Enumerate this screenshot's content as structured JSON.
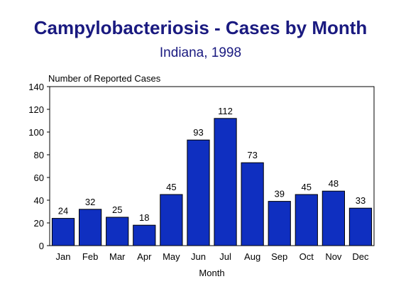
{
  "chart_data": {
    "type": "bar",
    "title": "Campylobacteriosis - Cases by Month",
    "subtitle": "Indiana, 1998",
    "ylabel": "Number of Reported Cases",
    "xlabel": "Month",
    "categories": [
      "Jan",
      "Feb",
      "Mar",
      "Apr",
      "May",
      "Jun",
      "Jul",
      "Aug",
      "Sep",
      "Oct",
      "Nov",
      "Dec"
    ],
    "values": [
      24,
      32,
      25,
      18,
      45,
      93,
      112,
      73,
      39,
      45,
      48,
      33
    ],
    "ylim": [
      0,
      140
    ],
    "yticks": [
      0,
      20,
      40,
      60,
      80,
      100,
      120,
      140
    ],
    "data_labels": true,
    "grid": false,
    "legend": "none",
    "bar_color": "#0f2fc0"
  }
}
